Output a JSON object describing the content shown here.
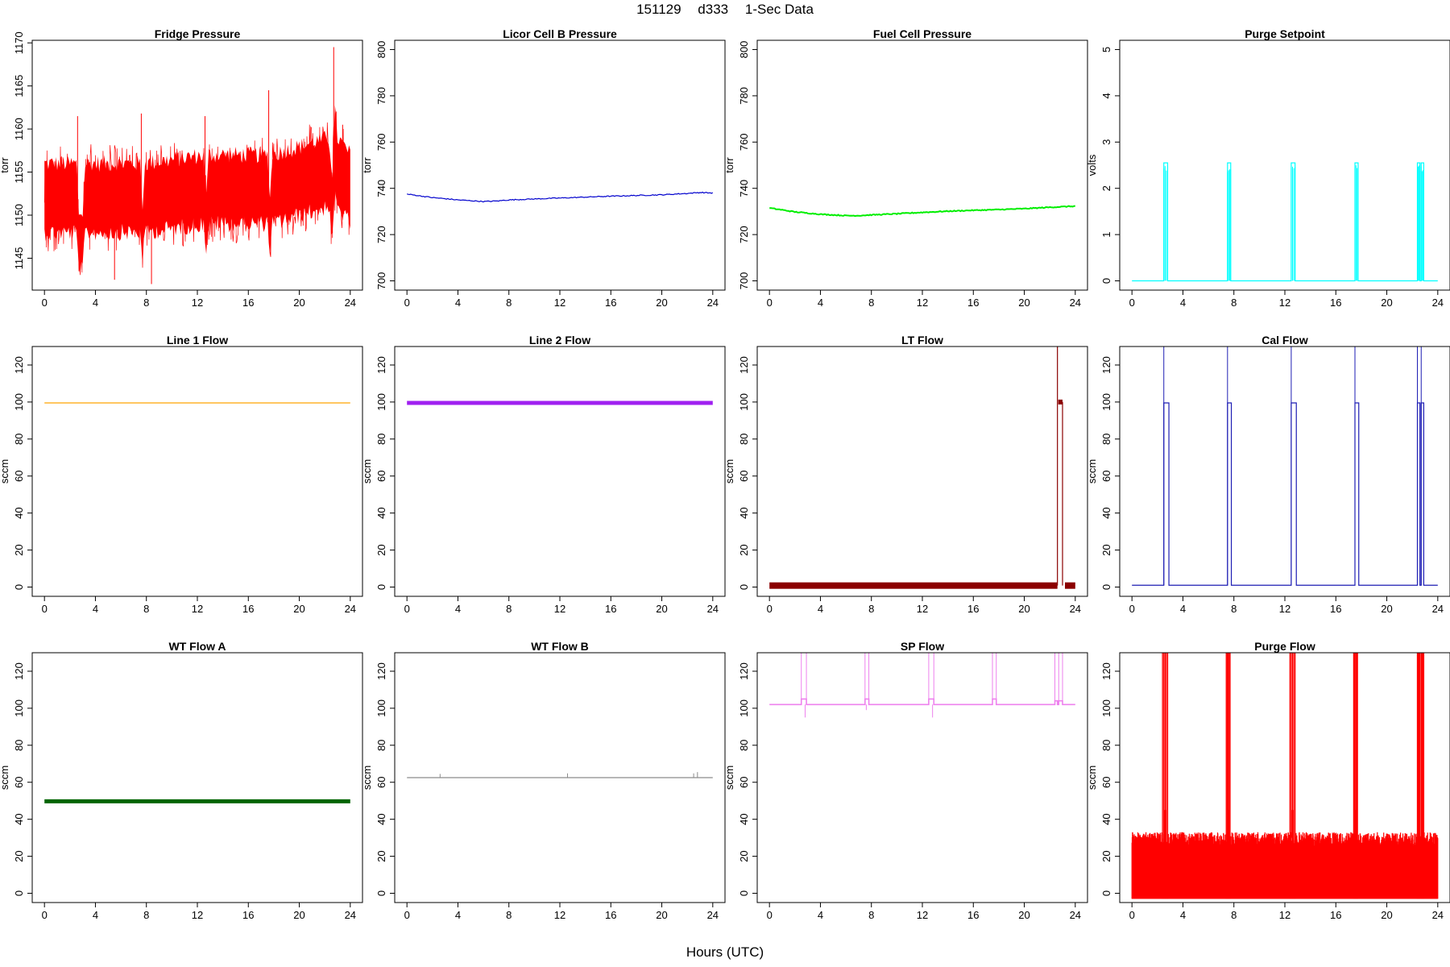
{
  "figure": {
    "title_parts": [
      "151129",
      "d333",
      "1-Sec Data"
    ],
    "xlabel": "Hours (UTC)"
  },
  "chart_data": [
    {
      "type": "line",
      "title": "Fridge Pressure",
      "ylabel": "torr",
      "xlim": [
        -0.96,
        24.96
      ],
      "ylim": [
        1141.3,
        1170.3
      ],
      "xticks": [
        0,
        4,
        8,
        12,
        16,
        20,
        24
      ],
      "yticks": [
        1145,
        1150,
        1155,
        1160,
        1165,
        1170
      ],
      "color": "#ff0000",
      "style": "noise",
      "series": [
        {
          "x": [
            0,
            2.5,
            2.7,
            3.0,
            3.2,
            7.5,
            7.7,
            7.9,
            12.5,
            12.7,
            12.9,
            17.5,
            17.7,
            17.9,
            22.3,
            22.6,
            22.8,
            23.0,
            24
          ],
          "y": [
            1152,
            1152,
            1147,
            1147,
            1152,
            1152,
            1148,
            1152,
            1153,
            1149,
            1153,
            1153,
            1149,
            1153,
            1155,
            1151,
            1157,
            1155,
            1153
          ]
        }
      ],
      "band_halfwidth": [
        5,
        5,
        4,
        4,
        5,
        5,
        4,
        5,
        5,
        4,
        5,
        5,
        4,
        5,
        5,
        5,
        6,
        5,
        5
      ],
      "spikes": [
        [
          2.6,
          1161.5
        ],
        [
          7.6,
          1161.8
        ],
        [
          12.6,
          1161.5
        ],
        [
          17.6,
          1164.5
        ],
        [
          22.7,
          1169.5
        ],
        [
          8.4,
          1142
        ],
        [
          5.5,
          1142.5
        ],
        [
          23.4,
          1160.5
        ]
      ]
    },
    {
      "type": "line",
      "title": "Licor Cell B Pressure",
      "ylabel": "torr",
      "xlim": [
        -0.96,
        24.96
      ],
      "ylim": [
        696,
        804
      ],
      "xticks": [
        0,
        4,
        8,
        12,
        16,
        20,
        24
      ],
      "yticks": [
        700,
        720,
        740,
        760,
        780,
        800
      ],
      "color": "#0000cd",
      "style": "line",
      "series": [
        {
          "x": [
            0,
            2,
            4,
            6,
            7,
            8,
            10,
            12,
            14,
            16,
            18,
            20,
            22,
            23,
            24
          ],
          "y": [
            737.5,
            736,
            735,
            734.3,
            734.5,
            735,
            735.4,
            735.8,
            736.2,
            736.6,
            736.9,
            737.2,
            737.8,
            738.2,
            738
          ]
        }
      ]
    },
    {
      "type": "line",
      "title": "Fuel Cell Pressure",
      "ylabel": "torr",
      "xlim": [
        -0.96,
        24.96
      ],
      "ylim": [
        696,
        804
      ],
      "xticks": [
        0,
        4,
        8,
        12,
        16,
        20,
        24
      ],
      "yticks": [
        700,
        720,
        740,
        760,
        780,
        800
      ],
      "color": "#00ee00",
      "style": "thick",
      "series": [
        {
          "x": [
            0,
            2,
            4,
            6,
            7,
            8,
            10,
            12,
            14,
            16,
            18,
            20,
            22,
            24
          ],
          "y": [
            731.5,
            729.8,
            728.8,
            728.2,
            728.2,
            728.5,
            729,
            729.6,
            730.1,
            730.5,
            730.8,
            731.2,
            731.8,
            732.3
          ]
        }
      ]
    },
    {
      "type": "line",
      "title": "Purge Setpoint",
      "ylabel": "volts",
      "xlim": [
        -0.96,
        24.96
      ],
      "ylim": [
        -0.2,
        5.2
      ],
      "xticks": [
        0,
        4,
        8,
        12,
        16,
        20,
        24
      ],
      "yticks": [
        0,
        1,
        2,
        3,
        4,
        5
      ],
      "color": "#00ffff",
      "style": "pulses",
      "baseline": 0,
      "pulses": [
        [
          2.5,
          2.8,
          2.55
        ],
        [
          7.5,
          7.75,
          2.55
        ],
        [
          12.5,
          12.8,
          2.55
        ],
        [
          17.5,
          17.75,
          2.55
        ],
        [
          22.4,
          22.6,
          2.55
        ],
        [
          22.7,
          22.9,
          2.55
        ]
      ]
    },
    {
      "type": "line",
      "title": "Line 1 Flow",
      "ylabel": "sccm",
      "xlim": [
        -0.96,
        24.96
      ],
      "ylim": [
        -5,
        130
      ],
      "xticks": [
        0,
        4,
        8,
        12,
        16,
        20,
        24
      ],
      "yticks": [
        0,
        20,
        40,
        60,
        80,
        100,
        120
      ],
      "color": "#ffa500",
      "style": "line",
      "series": [
        {
          "x": [
            0,
            24
          ],
          "y": [
            99.5,
            99.5
          ]
        }
      ]
    },
    {
      "type": "line",
      "title": "Line 2 Flow",
      "ylabel": "sccm",
      "xlim": [
        -0.96,
        24.96
      ],
      "ylim": [
        -5,
        130
      ],
      "xticks": [
        0,
        4,
        8,
        12,
        16,
        20,
        24
      ],
      "yticks": [
        0,
        20,
        40,
        60,
        80,
        100,
        120
      ],
      "color": "#a020f0",
      "style": "thickband",
      "series": [
        {
          "x": [
            0,
            24
          ],
          "y": [
            99.5,
            99.5
          ]
        }
      ]
    },
    {
      "type": "line",
      "title": "LT Flow",
      "ylabel": "sccm",
      "xlim": [
        -0.96,
        24.96
      ],
      "ylim": [
        -5,
        130
      ],
      "xticks": [
        0,
        4,
        8,
        12,
        16,
        20,
        24
      ],
      "yticks": [
        0,
        20,
        40,
        60,
        80,
        100,
        120
      ],
      "color": "#8b0000",
      "style": "ltflow",
      "baseline": 0.8,
      "pulses": [
        [
          22.6,
          23.0,
          100
        ]
      ],
      "spikes": [
        [
          22.6,
          130
        ]
      ]
    },
    {
      "type": "line",
      "title": "Cal Flow",
      "ylabel": "sccm",
      "xlim": [
        -0.96,
        24.96
      ],
      "ylim": [
        -5,
        130
      ],
      "xticks": [
        0,
        4,
        8,
        12,
        16,
        20,
        24
      ],
      "yticks": [
        0,
        20,
        40,
        60,
        80,
        100,
        120
      ],
      "color": "#1e1eb4",
      "style": "pulses",
      "baseline": 1,
      "pulses": [
        [
          2.5,
          2.9,
          99.5
        ],
        [
          7.5,
          7.8,
          99.5
        ],
        [
          12.5,
          12.9,
          99.5
        ],
        [
          17.5,
          17.8,
          99.5
        ],
        [
          22.4,
          22.6,
          99.5
        ],
        [
          22.7,
          22.9,
          99.5
        ]
      ],
      "spikes": [
        [
          2.5,
          130
        ],
        [
          7.5,
          130
        ],
        [
          12.5,
          130
        ],
        [
          17.5,
          130
        ],
        [
          22.4,
          130
        ],
        [
          22.7,
          130
        ]
      ]
    },
    {
      "type": "line",
      "title": "WT Flow A",
      "ylabel": "sccm",
      "xlim": [
        -0.96,
        24.96
      ],
      "ylim": [
        -5,
        130
      ],
      "xticks": [
        0,
        4,
        8,
        12,
        16,
        20,
        24
      ],
      "yticks": [
        0,
        20,
        40,
        60,
        80,
        100,
        120
      ],
      "color": "#006400",
      "style": "thickband",
      "series": [
        {
          "x": [
            0,
            24
          ],
          "y": [
            49.7,
            49.7
          ]
        }
      ]
    },
    {
      "type": "line",
      "title": "WT Flow B",
      "ylabel": "sccm",
      "xlim": [
        -0.96,
        24.96
      ],
      "ylim": [
        -5,
        130
      ],
      "xticks": [
        0,
        4,
        8,
        12,
        16,
        20,
        24
      ],
      "yticks": [
        0,
        20,
        40,
        60,
        80,
        100,
        120
      ],
      "color": "#8c8c8c",
      "style": "line",
      "series": [
        {
          "x": [
            0,
            24
          ],
          "y": [
            62.5,
            62.5
          ]
        }
      ],
      "spikes": [
        [
          2.6,
          64.5
        ],
        [
          12.6,
          64.8
        ],
        [
          22.5,
          64.8
        ],
        [
          22.8,
          65.5
        ]
      ]
    },
    {
      "type": "line",
      "title": "SP Flow",
      "ylabel": "sccm",
      "xlim": [
        -0.96,
        24.96
      ],
      "ylim": [
        -5,
        130
      ],
      "xticks": [
        0,
        4,
        8,
        12,
        16,
        20,
        24
      ],
      "yticks": [
        0,
        20,
        40,
        60,
        80,
        100,
        120
      ],
      "color": "#ee82ee",
      "style": "pulses",
      "baseline": 102,
      "pulses": [
        [
          2.5,
          2.9,
          105
        ],
        [
          7.5,
          7.8,
          105
        ],
        [
          12.5,
          12.9,
          105
        ],
        [
          17.5,
          17.8,
          105
        ],
        [
          22.4,
          22.6,
          104
        ],
        [
          22.7,
          23.0,
          104
        ]
      ],
      "spikes": [
        [
          2.5,
          130
        ],
        [
          2.9,
          130
        ],
        [
          7.5,
          130
        ],
        [
          7.8,
          130
        ],
        [
          12.5,
          130
        ],
        [
          12.9,
          130
        ],
        [
          17.5,
          130
        ],
        [
          17.8,
          130
        ],
        [
          22.4,
          130
        ],
        [
          22.7,
          130
        ],
        [
          23.0,
          130
        ]
      ],
      "dips": [
        [
          2.8,
          95
        ],
        [
          12.8,
          95
        ],
        [
          7.6,
          99
        ]
      ]
    },
    {
      "type": "line",
      "title": "Purge Flow",
      "ylabel": "sccm",
      "xlim": [
        -0.96,
        24.96
      ],
      "ylim": [
        -5,
        130
      ],
      "xticks": [
        0,
        4,
        8,
        12,
        16,
        20,
        24
      ],
      "yticks": [
        0,
        20,
        40,
        60,
        80,
        100,
        120
      ],
      "color": "#ff0000",
      "style": "purge",
      "band": [
        -3,
        33
      ],
      "pulses": [
        [
          2.4,
          2.8
        ],
        [
          7.4,
          7.7
        ],
        [
          12.4,
          12.8
        ],
        [
          17.4,
          17.7
        ],
        [
          22.4,
          22.6
        ],
        [
          22.7,
          22.9
        ]
      ]
    }
  ]
}
